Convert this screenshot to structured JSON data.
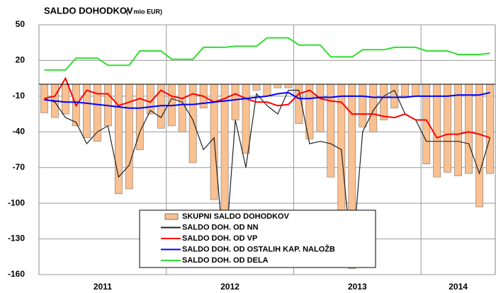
{
  "chart_data": {
    "type": "bar_line",
    "title": "SALDO DOHODKOV",
    "subtitle": "(v mio EUR)",
    "year_labels": [
      "2011",
      "2012",
      "2013",
      "2014"
    ],
    "year_months": [
      12,
      12,
      12,
      7
    ],
    "ylim": [
      -160,
      50
    ],
    "yticks": [
      50,
      20,
      -10,
      -40,
      -70,
      -100,
      -130,
      -160
    ],
    "grid": true,
    "series": [
      {
        "name": "SKUPNI SALDO DOHODKOV",
        "type": "bar",
        "color": "#fac090",
        "values": [
          -24,
          -28,
          -25,
          -35,
          -45,
          -48,
          -35,
          -92,
          -88,
          -55,
          -25,
          -37,
          -35,
          -40,
          -66,
          -20,
          -97,
          -125,
          -30,
          -58,
          -5,
          -10,
          -3,
          -3,
          -33,
          -46,
          -40,
          -78,
          -130,
          -155,
          -36,
          -40,
          -30,
          -20,
          -10,
          -10,
          -67,
          -78,
          -74,
          -77,
          -75,
          -103,
          -75
        ]
      },
      {
        "name": "SALDO DOH. OD NN",
        "type": "line",
        "color": "#222222",
        "values": [
          -12,
          -15,
          -28,
          -32,
          -50,
          -40,
          -35,
          -78,
          -68,
          -40,
          -22,
          -28,
          -12,
          -15,
          -30,
          -55,
          -45,
          -150,
          -30,
          -70,
          -8,
          -18,
          -25,
          -5,
          -5,
          -50,
          -48,
          -50,
          -55,
          -150,
          -40,
          -22,
          -10,
          -5,
          -25,
          -30,
          -48,
          -48,
          -48,
          -48,
          -50,
          -75,
          -45
        ]
      },
      {
        "name": "SALDO DOH. OD VP",
        "type": "line",
        "color": "#ff0000",
        "values": [
          -12,
          -10,
          5,
          -18,
          -5,
          -8,
          -8,
          -18,
          -15,
          -12,
          -15,
          -5,
          -10,
          -12,
          -8,
          -10,
          -15,
          -12,
          -8,
          -12,
          -15,
          -15,
          -18,
          -17,
          -8,
          -5,
          -12,
          -14,
          -15,
          -25,
          -25,
          -25,
          -27,
          -28,
          -25,
          -30,
          -30,
          -45,
          -42,
          -42,
          -40,
          -42,
          -45
        ]
      },
      {
        "name": "SALDO DOH. OD OSTALIH KAP. NALOŽB",
        "type": "line",
        "color": "#0000ff",
        "values": [
          -13,
          -14,
          -15,
          -15,
          -16,
          -17,
          -18,
          -19,
          -20,
          -20,
          -19,
          -18,
          -18,
          -17,
          -17,
          -16,
          -15,
          -14,
          -13,
          -12,
          -11,
          -10,
          -8,
          -7,
          -12,
          -12,
          -11,
          -11,
          -10,
          -10,
          -10,
          -11,
          -11,
          -11,
          -11,
          -10,
          -10,
          -10,
          -10,
          -9,
          -9,
          -9,
          -7
        ]
      },
      {
        "name": "SALDO DOH. OD DELA",
        "type": "line",
        "color": "#33dd33",
        "values": [
          12,
          12,
          12,
          22,
          22,
          22,
          16,
          16,
          16,
          28,
          28,
          28,
          21,
          21,
          21,
          31,
          31,
          31,
          32,
          32,
          32,
          39,
          39,
          39,
          33,
          33,
          33,
          23,
          23,
          23,
          29,
          29,
          29,
          31,
          31,
          31,
          28,
          28,
          28,
          25,
          25,
          25,
          26
        ]
      }
    ]
  }
}
